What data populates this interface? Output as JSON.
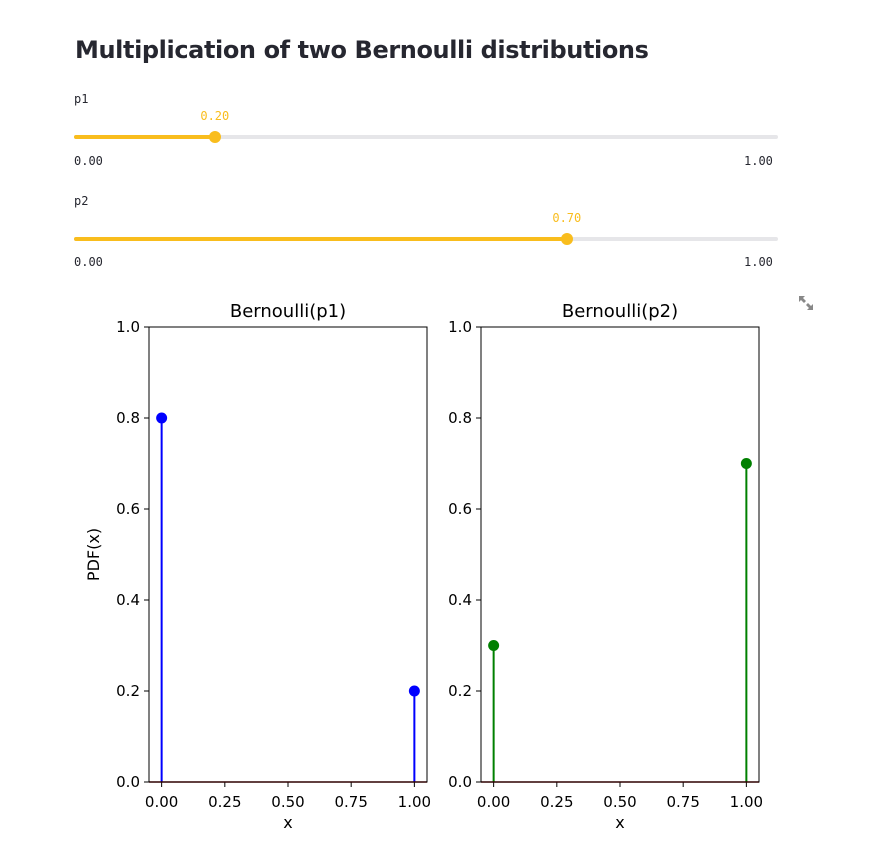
{
  "app": {
    "title": "Multiplication of two Bernoulli distributions"
  },
  "sliders": [
    {
      "label": "p1",
      "value": 0.2,
      "value_text": "0.20",
      "min_text": "0.00",
      "max_text": "1.00",
      "min": 0,
      "max": 1
    },
    {
      "label": "p2",
      "value": 0.7,
      "value_text": "0.70",
      "min_text": "0.00",
      "max_text": "1.00",
      "min": 0,
      "max": 1
    }
  ],
  "colors": {
    "accent": "#f9bd1d",
    "track": "#e6e6e9",
    "series_1": "#0000ff",
    "series_2": "#008000",
    "baseline": "#8b0000"
  },
  "icons": {
    "expand": "expand-icon"
  },
  "chart_data": [
    {
      "type": "stem",
      "title": "Bernoulli(p1)",
      "xlabel": "x",
      "ylabel": "PDF(x)",
      "x": [
        0,
        1
      ],
      "y": [
        0.8,
        0.2
      ],
      "xlim": [
        -0.05,
        1.05
      ],
      "ylim": [
        0,
        1.0
      ],
      "xticks": [
        0,
        0.25,
        0.5,
        0.75,
        1.0
      ],
      "xtick_labels": [
        "0.00",
        "0.25",
        "0.50",
        "0.75",
        "1.00"
      ],
      "yticks": [
        0,
        0.2,
        0.4,
        0.6,
        0.8,
        1.0
      ],
      "ytick_labels": [
        "0.0",
        "0.2",
        "0.4",
        "0.6",
        "0.8",
        "1.0"
      ],
      "color": "#0000ff",
      "grid": false
    },
    {
      "type": "stem",
      "title": "Bernoulli(p2)",
      "xlabel": "x",
      "ylabel": "",
      "x": [
        0,
        1
      ],
      "y": [
        0.3,
        0.7
      ],
      "xlim": [
        -0.05,
        1.05
      ],
      "ylim": [
        0,
        1.0
      ],
      "xticks": [
        0,
        0.25,
        0.5,
        0.75,
        1.0
      ],
      "xtick_labels": [
        "0.00",
        "0.25",
        "0.50",
        "0.75",
        "1.00"
      ],
      "yticks": [
        0,
        0.2,
        0.4,
        0.6,
        0.8,
        1.0
      ],
      "ytick_labels": [
        "0.0",
        "0.2",
        "0.4",
        "0.6",
        "0.8",
        "1.0"
      ],
      "color": "#008000",
      "grid": false
    }
  ]
}
